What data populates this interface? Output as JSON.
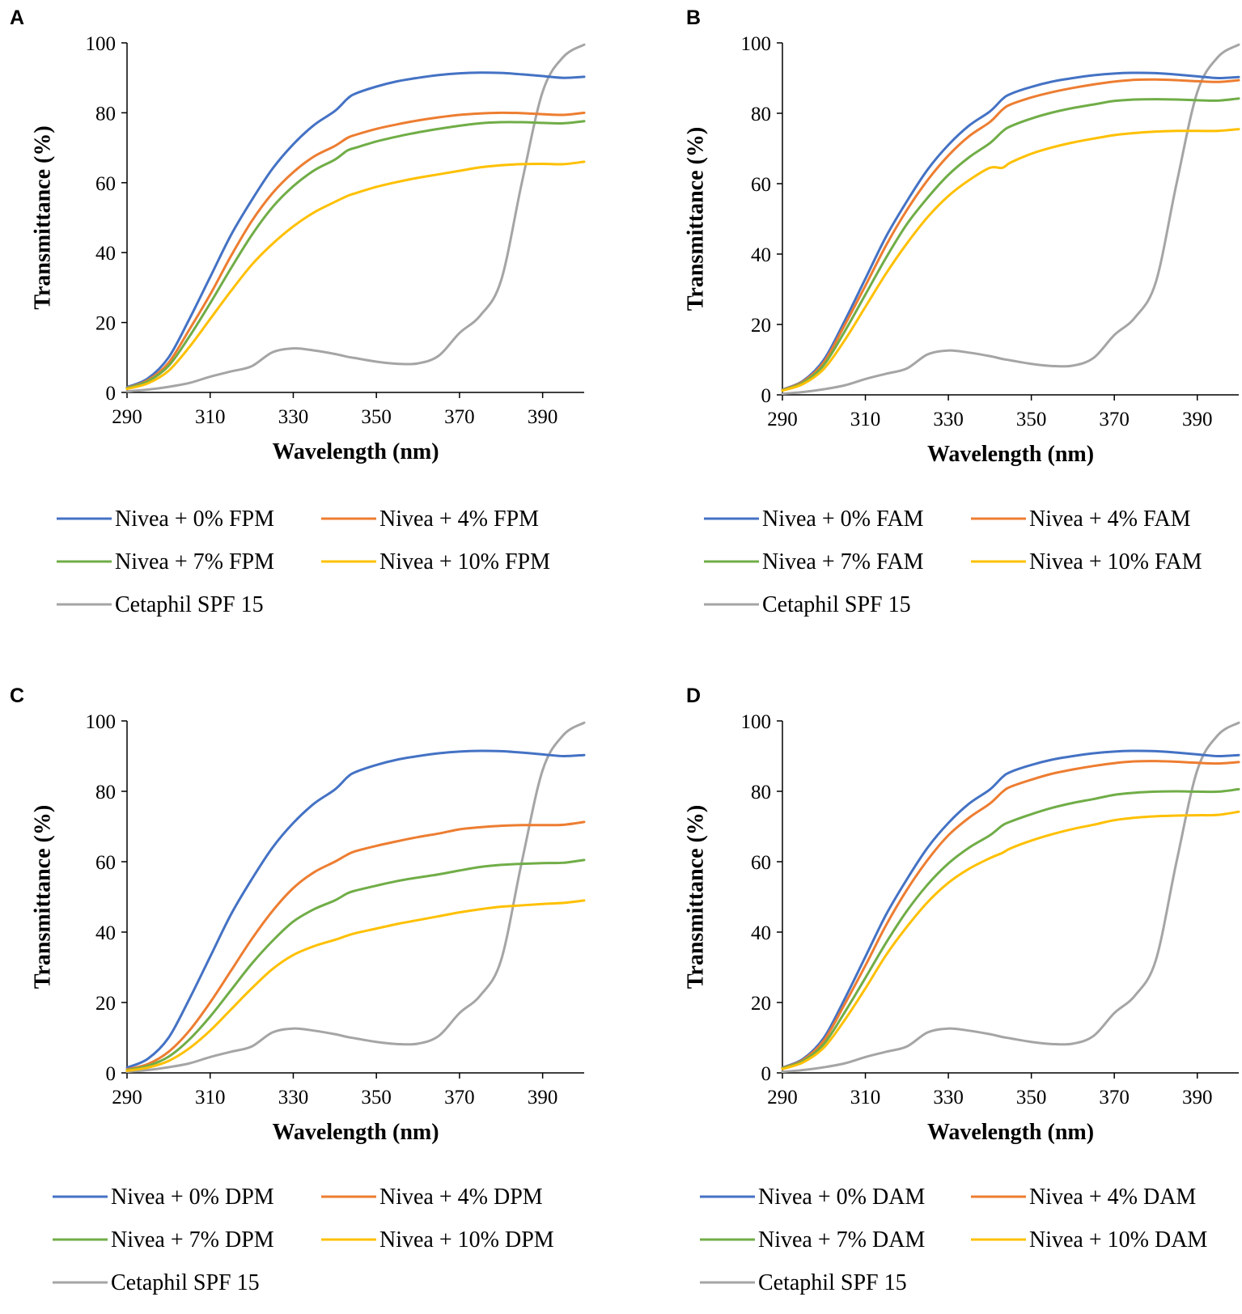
{
  "chart_data": [
    {
      "panel": "A",
      "type": "line",
      "xlabel": "Wavelength (nm)",
      "ylabel": "Transmittance (%)",
      "xlim": [
        290,
        400
      ],
      "ylim": [
        0,
        100
      ],
      "xticks": [
        290,
        310,
        330,
        350,
        370,
        390
      ],
      "yticks": [
        0,
        20,
        40,
        60,
        80,
        100
      ],
      "x": [
        290,
        295,
        300,
        305,
        310,
        315,
        320,
        325,
        330,
        335,
        340,
        343,
        345,
        350,
        355,
        360,
        365,
        370,
        375,
        380,
        385,
        390,
        395,
        400
      ],
      "series": [
        {
          "name": "Nivea + 0% FPM",
          "color": "#4472C4",
          "values": [
            1.5,
            4,
            10,
            21,
            33,
            45,
            55,
            64,
            71,
            76.5,
            80.5,
            84,
            85.5,
            87.5,
            89,
            90,
            90.8,
            91.3,
            91.5,
            91.4,
            91,
            90.5,
            90,
            90.3
          ]
        },
        {
          "name": "Nivea + 4% FPM",
          "color": "#ED7D31",
          "values": [
            1.3,
            3.5,
            8.5,
            18,
            28,
            39,
            49,
            57,
            63,
            67.5,
            70.5,
            72.8,
            73.7,
            75.4,
            76.7,
            77.8,
            78.7,
            79.4,
            79.8,
            80,
            79.9,
            79.6,
            79.4,
            80
          ]
        },
        {
          "name": "Nivea + 7% FPM",
          "color": "#70AD47",
          "values": [
            1.2,
            3.2,
            7.6,
            16,
            25.5,
            35.5,
            45,
            53,
            59,
            63.5,
            66.6,
            69.2,
            70,
            71.8,
            73.2,
            74.4,
            75.4,
            76.3,
            77,
            77.3,
            77.3,
            77.1,
            77,
            77.6
          ]
        },
        {
          "name": "Nivea + 10% FPM",
          "color": "#FFC000",
          "values": [
            1,
            2.6,
            6.2,
            13,
            21,
            29,
            36.5,
            42.5,
            47.5,
            51.5,
            54.5,
            56.2,
            57,
            58.8,
            60.2,
            61.4,
            62.4,
            63.4,
            64.4,
            65,
            65.3,
            65.4,
            65.3,
            66
          ]
        },
        {
          "name": "Cetaphil SPF 15",
          "color": "#A5A5A5",
          "values": [
            0.3,
            0.8,
            1.6,
            2.7,
            4.5,
            6,
            7.5,
            11.5,
            12.6,
            12,
            11,
            10.2,
            9.8,
            8.8,
            8.2,
            8.3,
            10.5,
            17,
            22,
            32,
            60,
            86,
            96,
            99.5
          ]
        }
      ]
    },
    {
      "panel": "B",
      "type": "line",
      "xlabel": "Wavelength (nm)",
      "ylabel": "Transmittance (%)",
      "xlim": [
        290,
        400
      ],
      "ylim": [
        0,
        100
      ],
      "xticks": [
        290,
        310,
        330,
        350,
        370,
        390
      ],
      "yticks": [
        0,
        20,
        40,
        60,
        80,
        100
      ],
      "x": [
        290,
        295,
        300,
        305,
        310,
        315,
        320,
        325,
        330,
        335,
        340,
        343,
        345,
        350,
        355,
        360,
        365,
        370,
        375,
        380,
        385,
        390,
        395,
        400
      ],
      "series": [
        {
          "name": "Nivea + 0% FAM",
          "color": "#4472C4",
          "values": [
            1.5,
            4,
            10,
            21,
            33,
            45,
            55,
            64,
            71,
            76.5,
            80.5,
            84,
            85.5,
            87.5,
            89,
            90,
            90.8,
            91.3,
            91.5,
            91.4,
            91,
            90.5,
            90,
            90.3
          ]
        },
        {
          "name": "Nivea + 4% FAM",
          "color": "#ED7D31",
          "values": [
            1.4,
            3.8,
            9.3,
            19.8,
            31,
            42.5,
            52.5,
            61,
            68,
            73.5,
            77.5,
            81,
            82.5,
            84.5,
            86,
            87.2,
            88.2,
            89,
            89.5,
            89.6,
            89.4,
            89.1,
            88.9,
            89.4
          ]
        },
        {
          "name": "Nivea + 7% FAM",
          "color": "#70AD47",
          "values": [
            1.3,
            3.5,
            8.5,
            18,
            28.5,
            39,
            48.5,
            56,
            62.5,
            67.5,
            71.5,
            74.8,
            76.3,
            78.5,
            80.2,
            81.5,
            82.5,
            83.5,
            83.9,
            84,
            83.9,
            83.7,
            83.6,
            84.2
          ]
        },
        {
          "name": "Nivea + 10% FAM",
          "color": "#FFC000",
          "values": [
            1.2,
            3.1,
            7.4,
            15.5,
            25,
            34.5,
            43,
            50.5,
            56.5,
            61,
            64.5,
            64.5,
            66,
            68.5,
            70.3,
            71.7,
            72.8,
            73.8,
            74.4,
            74.8,
            75,
            75,
            75,
            75.5
          ]
        },
        {
          "name": "Cetaphil SPF 15",
          "color": "#A5A5A5",
          "values": [
            0.3,
            0.8,
            1.6,
            2.7,
            4.5,
            6,
            7.5,
            11.5,
            12.6,
            12,
            11,
            10.2,
            9.8,
            8.8,
            8.2,
            8.3,
            10.5,
            17,
            22,
            32,
            60,
            86,
            96,
            99.5
          ]
        }
      ]
    },
    {
      "panel": "C",
      "type": "line",
      "xlabel": "Wavelength (nm)",
      "ylabel": "Transmittance (%)",
      "xlim": [
        290,
        400
      ],
      "ylim": [
        0,
        100
      ],
      "xticks": [
        290,
        310,
        330,
        350,
        370,
        390
      ],
      "yticks": [
        0,
        20,
        40,
        60,
        80,
        100
      ],
      "x": [
        290,
        295,
        300,
        305,
        310,
        315,
        320,
        325,
        330,
        335,
        340,
        343,
        345,
        350,
        355,
        360,
        365,
        370,
        375,
        380,
        385,
        390,
        395,
        400
      ],
      "series": [
        {
          "name": "Nivea + 0% DPM",
          "color": "#4472C4",
          "values": [
            1.5,
            4,
            10,
            21,
            33,
            45,
            55,
            64,
            71,
            76.5,
            80.5,
            84,
            85.5,
            87.5,
            89,
            90,
            90.8,
            91.3,
            91.5,
            91.4,
            91,
            90.5,
            90,
            90.3
          ]
        },
        {
          "name": "Nivea + 4% DPM",
          "color": "#ED7D31",
          "values": [
            1,
            2.5,
            6,
            12,
            20,
            29,
            38,
            46,
            52.5,
            57,
            60,
            62,
            63,
            64.5,
            65.8,
            67,
            68,
            69.2,
            69.8,
            70.2,
            70.4,
            70.4,
            70.5,
            71.3
          ]
        },
        {
          "name": "Nivea + 7% DPM",
          "color": "#70AD47",
          "values": [
            0.8,
            2,
            4.6,
            9.5,
            16,
            23.5,
            31,
            37.5,
            43,
            46.5,
            49,
            51,
            51.8,
            53.2,
            54.5,
            55.5,
            56.4,
            57.5,
            58.5,
            59.1,
            59.4,
            59.6,
            59.7,
            60.5
          ]
        },
        {
          "name": "Nivea + 10% DPM",
          "color": "#FFC000",
          "values": [
            0.6,
            1.5,
            3.4,
            7,
            12,
            18,
            24,
            29.5,
            33.5,
            36,
            37.8,
            39,
            39.7,
            41,
            42.3,
            43.4,
            44.5,
            45.6,
            46.5,
            47.2,
            47.6,
            48,
            48.3,
            49
          ]
        },
        {
          "name": "Cetaphil SPF 15",
          "color": "#A5A5A5",
          "values": [
            0.3,
            0.8,
            1.6,
            2.7,
            4.5,
            6,
            7.5,
            11.5,
            12.6,
            12,
            11,
            10.2,
            9.8,
            8.8,
            8.2,
            8.3,
            10.5,
            17,
            22,
            32,
            60,
            86,
            96,
            99.5
          ]
        }
      ]
    },
    {
      "panel": "D",
      "type": "line",
      "xlabel": "Wavelength (nm)",
      "ylabel": "Transmittance (%)",
      "xlim": [
        290,
        400
      ],
      "ylim": [
        0,
        100
      ],
      "xticks": [
        290,
        310,
        330,
        350,
        370,
        390
      ],
      "yticks": [
        0,
        20,
        40,
        60,
        80,
        100
      ],
      "x": [
        290,
        295,
        300,
        305,
        310,
        315,
        320,
        325,
        330,
        335,
        340,
        343,
        345,
        350,
        355,
        360,
        365,
        370,
        375,
        380,
        385,
        390,
        395,
        400
      ],
      "series": [
        {
          "name": "Nivea + 0% DAM",
          "color": "#4472C4",
          "values": [
            1.5,
            4,
            10,
            21,
            33,
            45,
            55,
            64,
            71,
            76.5,
            80.5,
            84,
            85.5,
            87.5,
            89,
            90,
            90.8,
            91.3,
            91.5,
            91.4,
            91,
            90.5,
            90,
            90.3
          ]
        },
        {
          "name": "Nivea + 4% DAM",
          "color": "#ED7D31",
          "values": [
            1.4,
            3.7,
            9.2,
            19.5,
            30.5,
            42,
            52,
            60.5,
            67.5,
            72.5,
            76.5,
            79.8,
            81.3,
            83.3,
            85,
            86.2,
            87.2,
            88,
            88.5,
            88.6,
            88.4,
            88.1,
            87.9,
            88.3
          ]
        },
        {
          "name": "Nivea + 7% DAM",
          "color": "#70AD47",
          "values": [
            1.3,
            3.4,
            8.2,
            17.2,
            27,
            37,
            46,
            53.5,
            59.5,
            64,
            67.5,
            70.3,
            71.4,
            73.5,
            75.3,
            76.7,
            77.8,
            79,
            79.6,
            79.9,
            80,
            79.9,
            79.9,
            80.6
          ]
        },
        {
          "name": "Nivea + 10% DAM",
          "color": "#FFC000",
          "values": [
            1.1,
            3,
            7.2,
            15,
            24,
            33.5,
            41.5,
            48.5,
            54,
            58,
            61,
            62.5,
            63.8,
            66,
            67.8,
            69.3,
            70.5,
            71.8,
            72.5,
            72.9,
            73.1,
            73.2,
            73.3,
            74.2
          ]
        },
        {
          "name": "Cetaphil SPF 15",
          "color": "#A5A5A5",
          "values": [
            0.3,
            0.8,
            1.6,
            2.7,
            4.5,
            6,
            7.5,
            11.5,
            12.6,
            12,
            11,
            10.2,
            9.8,
            8.8,
            8.2,
            8.3,
            10.5,
            17,
            22,
            32,
            60,
            86,
            96,
            99.5
          ]
        }
      ]
    }
  ]
}
